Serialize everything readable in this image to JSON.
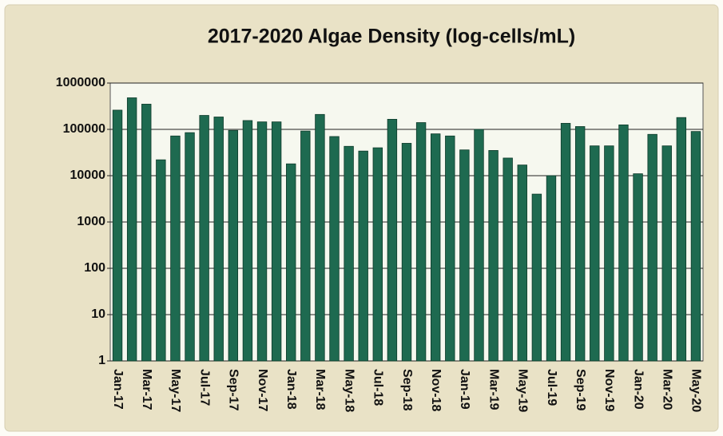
{
  "chart_data": {
    "type": "bar",
    "title": "2017-2020 Algae Density (log-cells/mL)",
    "categories": [
      "Jan-17",
      null,
      "Mar-17",
      null,
      "May-17",
      null,
      "Jul-17",
      null,
      "Sep-17",
      null,
      "Nov-17",
      null,
      "Jan-18",
      null,
      "Mar-18",
      null,
      "May-18",
      null,
      "Jul-18",
      null,
      "Sep-18",
      null,
      "Nov-18",
      null,
      "Jan-19",
      null,
      "Mar-19",
      null,
      "May-19",
      null,
      "Jul-19",
      null,
      "Sep-19",
      null,
      "Nov-19",
      null,
      "Jan-20",
      null,
      "Mar-20",
      null,
      "May-20"
    ],
    "values": [
      260000,
      480000,
      350000,
      22000,
      72000,
      85000,
      200000,
      185000,
      95000,
      155000,
      145000,
      145000,
      18000,
      92000,
      210000,
      70000,
      43000,
      34000,
      40000,
      165000,
      50000,
      140000,
      80000,
      72000,
      36000,
      100000,
      35000,
      24000,
      17000,
      4000,
      10000,
      135000,
      115000,
      44000,
      44000,
      125000,
      11000,
      78000,
      44000,
      180000,
      90000
    ],
    "color": "#1e6a50",
    "log_scale": true,
    "ylim": [
      1,
      1000000
    ],
    "yticks": [
      1,
      10,
      100,
      1000,
      10000,
      100000,
      1000000
    ],
    "grid": true
  }
}
